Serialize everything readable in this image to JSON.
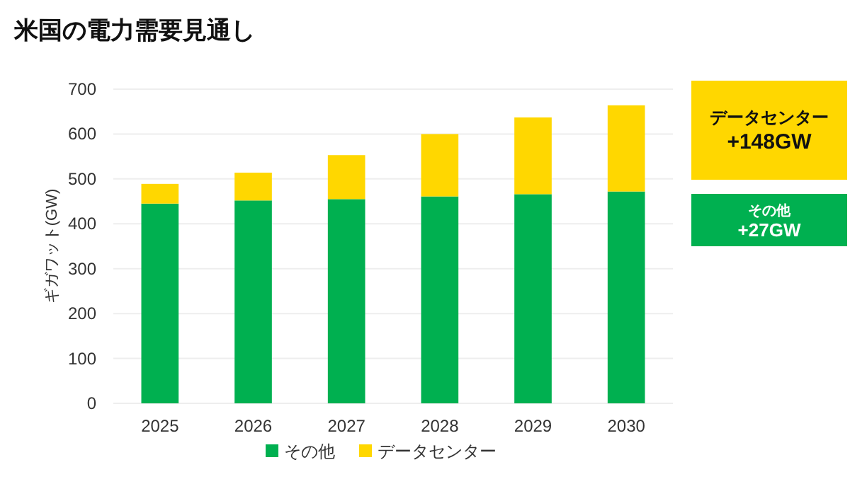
{
  "chart_data": {
    "type": "bar",
    "title": "米国の電力需要見通し",
    "ylabel": "ギガワット(GW)",
    "categories": [
      "2025",
      "2026",
      "2027",
      "2028",
      "2029",
      "2030"
    ],
    "stacked": true,
    "ylim": [
      0,
      700
    ],
    "yticks": [
      0,
      100,
      200,
      300,
      400,
      500,
      600,
      700
    ],
    "grid": "y",
    "legend": "bottom",
    "series": [
      {
        "name": "その他",
        "color": "#00b050",
        "values": [
          445,
          452,
          455,
          461,
          466,
          472
        ]
      },
      {
        "name": "データセンター",
        "color": "#ffd700",
        "values": [
          44,
          62,
          98,
          139,
          171,
          192
        ]
      }
    ],
    "annotations": [
      "データセンター\n+148GW",
      "その他\n+27GW"
    ]
  }
}
